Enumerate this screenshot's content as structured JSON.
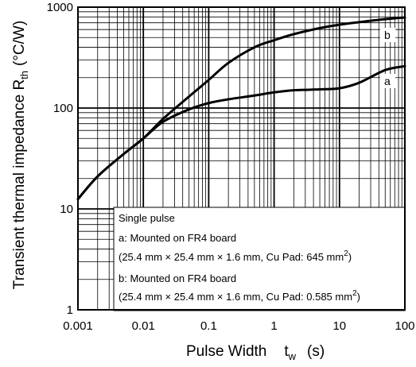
{
  "chart_data": {
    "type": "line",
    "x_scale": "log",
    "y_scale": "log",
    "xlim": [
      0.001,
      100
    ],
    "ylim": [
      1,
      1000
    ],
    "grid": true,
    "xlabel": "Pulse Width",
    "xlabel_symbol": "t",
    "xlabel_symbol_sub": "w",
    "xlabel_unit": "(s)",
    "ylabel": "Transient thermal impedance R",
    "ylabel_sub": "th",
    "ylabel_unit": "(°C/W)",
    "x_tick_labels": [
      "0.001",
      "0.01",
      "0.1",
      "1",
      "10",
      "100"
    ],
    "x_ticks": [
      0.001,
      0.01,
      0.1,
      1,
      10,
      100
    ],
    "y_tick_labels": [
      "1",
      "10",
      "100",
      "1000"
    ],
    "y_ticks": [
      1,
      10,
      100,
      1000
    ],
    "series": [
      {
        "name": "a",
        "x": [
          0.001,
          0.002,
          0.005,
          0.01,
          0.02,
          0.05,
          0.1,
          0.2,
          0.5,
          1,
          2,
          5,
          10,
          20,
          50,
          100
        ],
        "y": [
          12.5,
          21,
          35,
          50,
          73,
          97,
          112,
          122,
          133,
          143,
          150,
          153,
          157,
          178,
          238,
          260
        ]
      },
      {
        "name": "b",
        "x": [
          0.001,
          0.002,
          0.005,
          0.01,
          0.02,
          0.05,
          0.1,
          0.2,
          0.5,
          1,
          2,
          5,
          10,
          20,
          50,
          100
        ],
        "y": [
          12.5,
          21,
          35,
          50,
          78,
          130,
          190,
          280,
          400,
          470,
          540,
          620,
          670,
          710,
          760,
          790
        ]
      }
    ],
    "annotation": [
      "Single pulse",
      "a: Mounted on FR4 board",
      "(25.4 mm × 25.4 mm × 1.6 mm, Cu Pad: 645 mm",
      "b: Mounted on FR4 board",
      "(25.4 mm × 25.4 mm × 1.6 mm, Cu Pad: 0.585 mm"
    ],
    "annotation_sup": "2",
    "annotation_close": ")"
  }
}
